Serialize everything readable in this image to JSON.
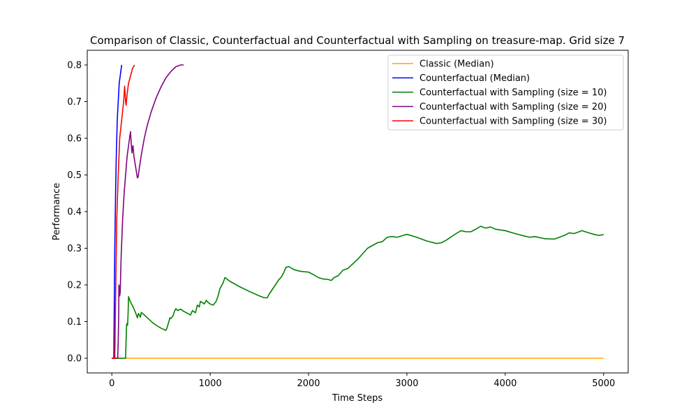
{
  "chart_data": {
    "type": "line",
    "title": "Comparison of Classic, Counterfactual and Counterfactual with Sampling on treasure-map. Grid size 7",
    "xlabel": "Time Steps",
    "ylabel": "Performance",
    "xlim": [
      -250,
      5250
    ],
    "ylim": [
      -0.04,
      0.84
    ],
    "xticks": [
      0,
      1000,
      2000,
      3000,
      4000,
      5000
    ],
    "yticks": [
      0.0,
      0.1,
      0.2,
      0.3,
      0.4,
      0.5,
      0.6,
      0.7,
      0.8
    ],
    "ytick_labels": [
      "0.0",
      "0.1",
      "0.2",
      "0.3",
      "0.4",
      "0.5",
      "0.6",
      "0.7",
      "0.8"
    ],
    "grid": false,
    "legend_position": "top-right",
    "series": [
      {
        "name": "Classic (Median)",
        "color": "#ffa500",
        "points": [
          [
            0,
            0.0
          ],
          [
            5000,
            0.0
          ]
        ]
      },
      {
        "name": "Counterfactual (Median)",
        "color": "#0000ff",
        "points": [
          [
            0,
            0.0
          ],
          [
            20,
            0.0
          ],
          [
            25,
            0.15
          ],
          [
            30,
            0.3
          ],
          [
            38,
            0.45
          ],
          [
            45,
            0.55
          ],
          [
            55,
            0.65
          ],
          [
            65,
            0.7
          ],
          [
            75,
            0.75
          ],
          [
            90,
            0.78
          ],
          [
            100,
            0.8
          ]
        ]
      },
      {
        "name": "Counterfactual with Sampling (size = 10)",
        "color": "#008000",
        "points": [
          [
            0,
            0.0
          ],
          [
            140,
            0.0
          ],
          [
            145,
            0.05
          ],
          [
            150,
            0.09
          ],
          [
            155,
            0.095
          ],
          [
            160,
            0.09
          ],
          [
            165,
            0.12
          ],
          [
            170,
            0.168
          ],
          [
            180,
            0.16
          ],
          [
            200,
            0.148
          ],
          [
            220,
            0.138
          ],
          [
            240,
            0.125
          ],
          [
            250,
            0.118
          ],
          [
            260,
            0.11
          ],
          [
            270,
            0.122
          ],
          [
            280,
            0.118
          ],
          [
            290,
            0.112
          ],
          [
            300,
            0.125
          ],
          [
            330,
            0.118
          ],
          [
            370,
            0.108
          ],
          [
            410,
            0.098
          ],
          [
            450,
            0.09
          ],
          [
            500,
            0.082
          ],
          [
            550,
            0.076
          ],
          [
            560,
            0.082
          ],
          [
            580,
            0.1
          ],
          [
            590,
            0.11
          ],
          [
            600,
            0.108
          ],
          [
            620,
            0.115
          ],
          [
            640,
            0.13
          ],
          [
            650,
            0.135
          ],
          [
            670,
            0.13
          ],
          [
            700,
            0.134
          ],
          [
            730,
            0.128
          ],
          [
            760,
            0.124
          ],
          [
            800,
            0.118
          ],
          [
            820,
            0.13
          ],
          [
            850,
            0.124
          ],
          [
            870,
            0.145
          ],
          [
            890,
            0.14
          ],
          [
            900,
            0.155
          ],
          [
            920,
            0.152
          ],
          [
            940,
            0.148
          ],
          [
            960,
            0.158
          ],
          [
            980,
            0.152
          ],
          [
            1000,
            0.148
          ],
          [
            1030,
            0.145
          ],
          [
            1060,
            0.155
          ],
          [
            1080,
            0.17
          ],
          [
            1100,
            0.19
          ],
          [
            1130,
            0.205
          ],
          [
            1150,
            0.22
          ],
          [
            1200,
            0.21
          ],
          [
            1300,
            0.195
          ],
          [
            1400,
            0.182
          ],
          [
            1500,
            0.17
          ],
          [
            1550,
            0.165
          ],
          [
            1580,
            0.165
          ],
          [
            1600,
            0.175
          ],
          [
            1650,
            0.195
          ],
          [
            1700,
            0.215
          ],
          [
            1720,
            0.22
          ],
          [
            1750,
            0.235
          ],
          [
            1770,
            0.248
          ],
          [
            1800,
            0.25
          ],
          [
            1850,
            0.242
          ],
          [
            1900,
            0.238
          ],
          [
            1950,
            0.236
          ],
          [
            2000,
            0.235
          ],
          [
            2050,
            0.228
          ],
          [
            2100,
            0.22
          ],
          [
            2150,
            0.216
          ],
          [
            2200,
            0.215
          ],
          [
            2230,
            0.212
          ],
          [
            2260,
            0.22
          ],
          [
            2300,
            0.225
          ],
          [
            2350,
            0.24
          ],
          [
            2400,
            0.245
          ],
          [
            2500,
            0.27
          ],
          [
            2600,
            0.3
          ],
          [
            2700,
            0.315
          ],
          [
            2750,
            0.318
          ],
          [
            2800,
            0.33
          ],
          [
            2850,
            0.332
          ],
          [
            2900,
            0.33
          ],
          [
            2950,
            0.334
          ],
          [
            3000,
            0.338
          ],
          [
            3100,
            0.33
          ],
          [
            3200,
            0.32
          ],
          [
            3300,
            0.313
          ],
          [
            3350,
            0.315
          ],
          [
            3400,
            0.322
          ],
          [
            3500,
            0.34
          ],
          [
            3550,
            0.348
          ],
          [
            3600,
            0.345
          ],
          [
            3650,
            0.345
          ],
          [
            3700,
            0.352
          ],
          [
            3750,
            0.36
          ],
          [
            3800,
            0.355
          ],
          [
            3850,
            0.358
          ],
          [
            3900,
            0.352
          ],
          [
            4000,
            0.348
          ],
          [
            4100,
            0.34
          ],
          [
            4200,
            0.333
          ],
          [
            4250,
            0.33
          ],
          [
            4300,
            0.332
          ],
          [
            4400,
            0.326
          ],
          [
            4500,
            0.325
          ],
          [
            4550,
            0.33
          ],
          [
            4600,
            0.335
          ],
          [
            4650,
            0.342
          ],
          [
            4700,
            0.34
          ],
          [
            4750,
            0.345
          ],
          [
            4780,
            0.348
          ],
          [
            4850,
            0.342
          ],
          [
            4900,
            0.338
          ],
          [
            4950,
            0.335
          ],
          [
            5000,
            0.337
          ]
        ]
      },
      {
        "name": "Counterfactual with Sampling (size = 20)",
        "color": "#800080",
        "points": [
          [
            0,
            0.0
          ],
          [
            60,
            0.0
          ],
          [
            65,
            0.05
          ],
          [
            70,
            0.12
          ],
          [
            72,
            0.2
          ],
          [
            78,
            0.19
          ],
          [
            80,
            0.17
          ],
          [
            85,
            0.18
          ],
          [
            95,
            0.28
          ],
          [
            110,
            0.38
          ],
          [
            125,
            0.45
          ],
          [
            140,
            0.5
          ],
          [
            155,
            0.55
          ],
          [
            170,
            0.58
          ],
          [
            185,
            0.61
          ],
          [
            190,
            0.618
          ],
          [
            198,
            0.582
          ],
          [
            205,
            0.56
          ],
          [
            210,
            0.575
          ],
          [
            215,
            0.58
          ],
          [
            225,
            0.55
          ],
          [
            240,
            0.525
          ],
          [
            255,
            0.5
          ],
          [
            260,
            0.492
          ],
          [
            268,
            0.495
          ],
          [
            280,
            0.52
          ],
          [
            300,
            0.555
          ],
          [
            330,
            0.6
          ],
          [
            360,
            0.635
          ],
          [
            400,
            0.672
          ],
          [
            450,
            0.71
          ],
          [
            500,
            0.74
          ],
          [
            550,
            0.765
          ],
          [
            600,
            0.782
          ],
          [
            650,
            0.795
          ],
          [
            700,
            0.8
          ],
          [
            730,
            0.8
          ]
        ]
      },
      {
        "name": "Counterfactual with Sampling (size = 30)",
        "color": "#ff0000",
        "points": [
          [
            0,
            0.0
          ],
          [
            30,
            0.0
          ],
          [
            40,
            0.2
          ],
          [
            50,
            0.38
          ],
          [
            65,
            0.5
          ],
          [
            80,
            0.6
          ],
          [
            100,
            0.65
          ],
          [
            120,
            0.7
          ],
          [
            130,
            0.742
          ],
          [
            140,
            0.7
          ],
          [
            145,
            0.69
          ],
          [
            155,
            0.72
          ],
          [
            170,
            0.75
          ],
          [
            190,
            0.77
          ],
          [
            210,
            0.79
          ],
          [
            230,
            0.8
          ]
        ]
      }
    ]
  }
}
